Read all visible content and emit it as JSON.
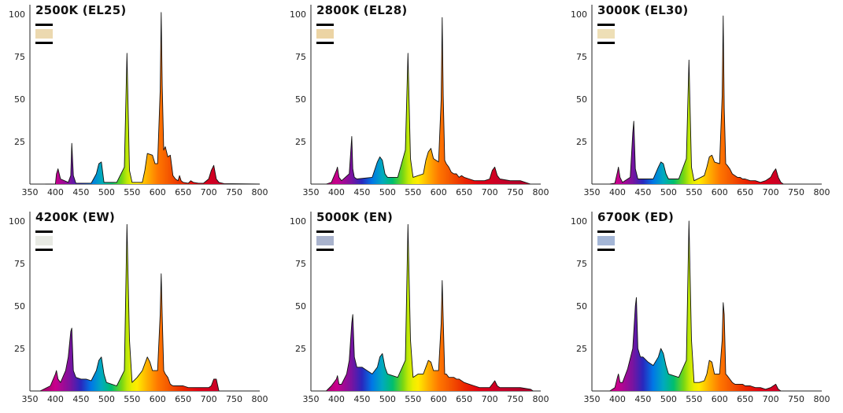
{
  "chart_data": [
    {
      "type": "area",
      "title": "2500K (EL25)",
      "swatch_color": "#ecd9b0",
      "x_ticks": [
        350,
        400,
        450,
        500,
        550,
        600,
        650,
        700,
        750,
        800
      ],
      "y_ticks": [
        25,
        50,
        75,
        100
      ],
      "xlim": [
        350,
        800
      ],
      "ylim": [
        0,
        100
      ],
      "series": [
        {
          "x": [
            380,
            400,
            402,
            405,
            410,
            425,
            430,
            432,
            435,
            440,
            470,
            480,
            485,
            490,
            495,
            520,
            535,
            540,
            545,
            550,
            570,
            575,
            580,
            590,
            595,
            600,
            605,
            607,
            609,
            612,
            615,
            620,
            625,
            630,
            635,
            640,
            643,
            646,
            650,
            660,
            665,
            670,
            680,
            690,
            700,
            705,
            710,
            715,
            720,
            730,
            800
          ],
          "y": [
            0,
            0,
            6,
            9,
            3,
            1,
            5,
            24,
            5,
            0.5,
            0.5,
            6,
            12,
            13,
            1,
            1,
            10,
            77,
            8,
            1,
            1,
            8,
            18,
            17,
            12,
            12,
            55,
            101,
            58,
            20,
            22,
            16,
            17,
            5,
            3,
            2,
            5,
            2,
            1,
            0.5,
            2,
            1,
            0.5,
            0.5,
            3,
            8,
            11,
            3,
            1,
            0.3,
            0
          ]
        }
      ]
    },
    {
      "type": "area",
      "title": "2800K (EL28)",
      "swatch_color": "#ecd4a4",
      "x_ticks": [
        350,
        400,
        450,
        500,
        550,
        600,
        650,
        700,
        750,
        800
      ],
      "y_ticks": [
        25,
        50,
        75,
        100
      ],
      "xlim": [
        350,
        800
      ],
      "ylim": [
        0,
        100
      ],
      "series": [
        {
          "x": [
            380,
            390,
            400,
            402,
            405,
            410,
            425,
            430,
            432,
            435,
            440,
            470,
            480,
            485,
            490,
            495,
            500,
            520,
            535,
            540,
            545,
            550,
            570,
            575,
            580,
            585,
            590,
            600,
            605,
            607,
            609,
            612,
            615,
            620,
            625,
            630,
            635,
            640,
            645,
            650,
            660,
            670,
            680,
            690,
            700,
            705,
            710,
            715,
            720,
            740,
            760,
            780
          ],
          "y": [
            0,
            1,
            8,
            10,
            4,
            2,
            6,
            28,
            9,
            4,
            3,
            4,
            13,
            16,
            14,
            6,
            4,
            4,
            20,
            77,
            15,
            4,
            6,
            14,
            19,
            21,
            15,
            13,
            50,
            98,
            52,
            14,
            12,
            10,
            7,
            6,
            6,
            4,
            5,
            4,
            3,
            2,
            2,
            2,
            3,
            8,
            10,
            5,
            3,
            2,
            2,
            0
          ]
        }
      ]
    },
    {
      "type": "area",
      "title": "3000K (EL30)",
      "swatch_color": "#eedfb6",
      "x_ticks": [
        350,
        400,
        450,
        500,
        550,
        600,
        650,
        700,
        750,
        800
      ],
      "y_ticks": [
        25,
        50,
        75,
        100
      ],
      "xlim": [
        350,
        800
      ],
      "ylim": [
        0,
        100
      ],
      "series": [
        {
          "x": [
            385,
            395,
            400,
            402,
            405,
            410,
            425,
            430,
            432,
            435,
            440,
            450,
            470,
            480,
            485,
            490,
            495,
            500,
            520,
            535,
            540,
            545,
            550,
            570,
            575,
            580,
            585,
            590,
            600,
            605,
            607,
            609,
            612,
            615,
            620,
            625,
            630,
            635,
            640,
            645,
            650,
            660,
            670,
            680,
            690,
            700,
            705,
            710,
            715,
            720,
            725
          ],
          "y": [
            0,
            0.5,
            7,
            10,
            4,
            1,
            4,
            30,
            37,
            9,
            3,
            3,
            3,
            10,
            13,
            12,
            6,
            3,
            3,
            15,
            73,
            10,
            2,
            5,
            10,
            16,
            17,
            13,
            12,
            52,
            99,
            45,
            12,
            11,
            9,
            6,
            5,
            4,
            4,
            3,
            3,
            2,
            2,
            1,
            2,
            4,
            7,
            9,
            4,
            1,
            0
          ]
        }
      ]
    },
    {
      "type": "area",
      "title": "4200K (EW)",
      "swatch_color": "#e8eae4",
      "x_ticks": [
        350,
        400,
        450,
        500,
        550,
        600,
        650,
        700,
        750,
        800
      ],
      "y_ticks": [
        25,
        50,
        75,
        100
      ],
      "xlim": [
        350,
        800
      ],
      "ylim": [
        0,
        100
      ],
      "series": [
        {
          "x": [
            370,
            390,
            400,
            402,
            405,
            410,
            420,
            425,
            430,
            432,
            435,
            440,
            450,
            460,
            470,
            480,
            485,
            490,
            495,
            500,
            520,
            535,
            540,
            545,
            550,
            560,
            570,
            575,
            580,
            585,
            590,
            600,
            605,
            607,
            609,
            612,
            615,
            620,
            625,
            630,
            635,
            640,
            645,
            650,
            660,
            670,
            680,
            690,
            700,
            705,
            710,
            715,
            720
          ],
          "y": [
            0,
            3,
            10,
            12,
            7,
            5,
            12,
            20,
            35,
            37,
            12,
            8,
            7,
            7,
            6,
            12,
            18,
            20,
            10,
            5,
            3,
            12,
            98,
            30,
            5,
            8,
            12,
            16,
            20,
            17,
            12,
            12,
            45,
            69,
            44,
            12,
            10,
            8,
            4,
            3,
            3,
            3,
            3,
            3,
            2,
            2,
            2,
            2,
            2,
            3,
            7,
            7,
            0
          ]
        }
      ]
    },
    {
      "type": "area",
      "title": "5000K (EN)",
      "swatch_color": "#a9b3cd",
      "x_ticks": [
        350,
        400,
        450,
        500,
        550,
        600,
        650,
        700,
        750,
        800
      ],
      "y_ticks": [
        25,
        50,
        75,
        100
      ],
      "xlim": [
        350,
        800
      ],
      "ylim": [
        0,
        100
      ],
      "series": [
        {
          "x": [
            380,
            390,
            400,
            402,
            405,
            410,
            420,
            425,
            430,
            432,
            435,
            440,
            450,
            460,
            470,
            480,
            485,
            490,
            495,
            500,
            520,
            535,
            540,
            545,
            550,
            560,
            570,
            575,
            580,
            585,
            590,
            600,
            605,
            607,
            609,
            612,
            615,
            620,
            625,
            630,
            635,
            640,
            645,
            650,
            660,
            670,
            680,
            690,
            700,
            705,
            710,
            715,
            720,
            740,
            760,
            780,
            785
          ],
          "y": [
            0,
            3,
            7,
            9,
            4,
            4,
            10,
            18,
            40,
            45,
            20,
            14,
            14,
            12,
            10,
            14,
            20,
            22,
            14,
            10,
            8,
            18,
            98,
            30,
            8,
            10,
            10,
            14,
            18,
            17,
            12,
            12,
            40,
            65,
            42,
            10,
            10,
            8,
            8,
            8,
            7,
            7,
            6,
            5,
            4,
            3,
            2,
            2,
            2,
            4,
            6,
            3,
            2,
            2,
            2,
            1,
            0
          ]
        }
      ]
    },
    {
      "type": "area",
      "title": "6700K (ED)",
      "swatch_color": "#a4b6d6",
      "x_ticks": [
        350,
        400,
        450,
        500,
        550,
        600,
        650,
        700,
        750,
        800
      ],
      "y_ticks": [
        25,
        50,
        75,
        100
      ],
      "xlim": [
        350,
        800
      ],
      "ylim": [
        0,
        100
      ],
      "series": [
        {
          "x": [
            385,
            395,
            400,
            402,
            405,
            410,
            420,
            430,
            435,
            437,
            440,
            445,
            450,
            460,
            470,
            480,
            485,
            490,
            495,
            500,
            520,
            535,
            540,
            545,
            550,
            560,
            570,
            575,
            580,
            585,
            590,
            600,
            605,
            607,
            609,
            612,
            615,
            620,
            625,
            630,
            635,
            640,
            645,
            650,
            660,
            670,
            680,
            690,
            700,
            705,
            710,
            715,
            720
          ],
          "y": [
            0,
            2,
            8,
            10,
            5,
            5,
            13,
            25,
            50,
            55,
            25,
            20,
            20,
            17,
            15,
            20,
            25,
            22,
            15,
            10,
            8,
            18,
            100,
            30,
            5,
            5,
            6,
            10,
            18,
            17,
            10,
            10,
            30,
            52,
            45,
            10,
            9,
            7,
            5,
            4,
            4,
            4,
            4,
            3,
            3,
            2,
            2,
            1,
            2,
            3,
            4,
            1,
            0
          ]
        }
      ]
    }
  ]
}
